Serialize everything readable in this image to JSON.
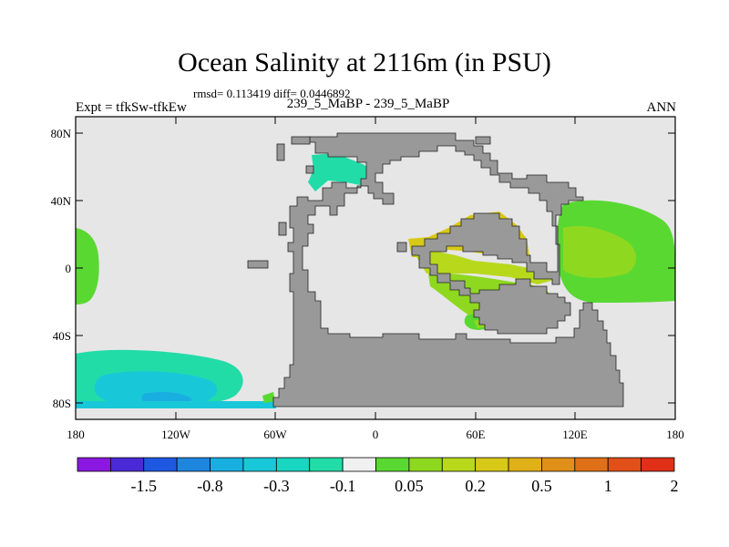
{
  "title": "Ocean Salinity at 2116m (in PSU)",
  "stats": "rmsd= 0.113419 diff= 0.0446892",
  "experiment_label": "Expt = tfkSw-tfkEw",
  "case_label": "239_5_MaBP - 239_5_MaBP",
  "season_label": "ANN",
  "colors": {
    "land": "#999999",
    "ocean_neutral": "#e6e6e6",
    "coastline": "#222222"
  },
  "map": {
    "projection": "cylindrical equidistant",
    "lon_range": [
      -180,
      180
    ],
    "lat_range": [
      -90,
      90
    ],
    "y_ticks": [
      "80N",
      "40N",
      "0",
      "40S",
      "80S"
    ],
    "x_ticks": [
      "180",
      "120W",
      "60W",
      "0",
      "60E",
      "120E",
      "180"
    ]
  },
  "colorbar": {
    "colors": [
      "#8a18e0",
      "#4a2ad6",
      "#1f58e0",
      "#1f86e0",
      "#19aee0",
      "#19c8d8",
      "#19d6c0",
      "#22dca8",
      "#f0f0f0",
      "#5ad832",
      "#8fd820",
      "#b8d81c",
      "#d8c818",
      "#e0b018",
      "#e09018",
      "#e07018",
      "#e05018",
      "#e03018"
    ],
    "labels": [
      "-1.5",
      "-0.8",
      "-0.3",
      "-0.1",
      "0.05",
      "0.2",
      "0.5",
      "1",
      "2"
    ]
  }
}
